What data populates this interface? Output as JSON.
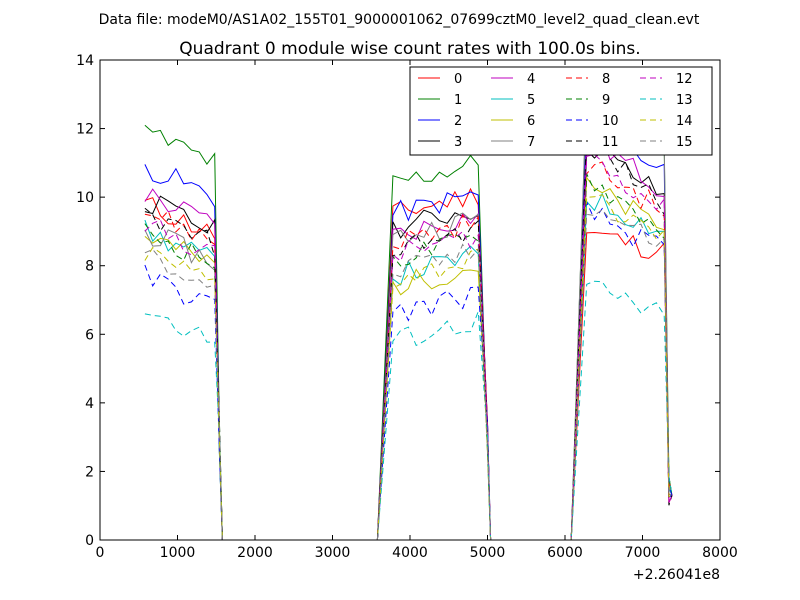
{
  "header": {
    "suptitle": "Data file: modeM0/AS1A02_155T01_9000001062_07699cztM0_level2_quad_clean.evt"
  },
  "chart_data": {
    "type": "line",
    "title": "Quadrant 0 module wise count rates with 100.0s bins.",
    "xlabel": "",
    "ylabel": "",
    "x_offset_label": "+2.26041e8",
    "xlim": [
      0,
      8000
    ],
    "ylim": [
      0,
      14
    ],
    "xticks": [
      0,
      1000,
      2000,
      3000,
      4000,
      5000,
      6000,
      7000,
      8000
    ],
    "yticks": [
      0,
      2,
      4,
      6,
      8,
      10,
      12,
      14
    ],
    "legend_location": "upper-right",
    "legend_columns": 4,
    "series": [
      {
        "name": "0",
        "color": "#ff0000",
        "dash": "solid",
        "levels": [
          9.8,
          9.5,
          9.0,
          8.4
        ]
      },
      {
        "name": "1",
        "color": "#008000",
        "dash": "solid",
        "levels": [
          11.9,
          10.4,
          13.0,
          11.5
        ]
      },
      {
        "name": "2",
        "color": "#0000ff",
        "dash": "solid",
        "levels": [
          10.9,
          9.5,
          12.2,
          10.8
        ]
      },
      {
        "name": "3",
        "color": "#000000",
        "dash": "solid",
        "levels": [
          9.9,
          9.1,
          11.6,
          10.0
        ]
      },
      {
        "name": "4",
        "color": "#bf00bf",
        "dash": "solid",
        "levels": [
          10.1,
          8.9,
          11.8,
          10.2
        ]
      },
      {
        "name": "5",
        "color": "#00bfbf",
        "dash": "solid",
        "levels": [
          9.0,
          7.7,
          10.0,
          9.0
        ]
      },
      {
        "name": "6",
        "color": "#bfbf00",
        "dash": "solid",
        "levels": [
          8.9,
          7.4,
          10.3,
          9.1
        ]
      },
      {
        "name": "7",
        "color": "#808080",
        "dash": "solid",
        "levels": [
          9.0,
          8.8,
          13.5,
          12.0
        ]
      },
      {
        "name": "8",
        "color": "#ff0000",
        "dash": "dashed",
        "levels": [
          9.6,
          8.7,
          11.0,
          9.6
        ]
      },
      {
        "name": "9",
        "color": "#008000",
        "dash": "dashed",
        "levels": [
          9.0,
          8.2,
          10.6,
          9.0
        ]
      },
      {
        "name": "10",
        "color": "#0000ff",
        "dash": "dashed",
        "levels": [
          7.7,
          6.6,
          9.6,
          8.4
        ]
      },
      {
        "name": "11",
        "color": "#000000",
        "dash": "dashed",
        "levels": [
          9.5,
          8.5,
          11.7,
          9.8
        ]
      },
      {
        "name": "12",
        "color": "#bf00bf",
        "dash": "dashed",
        "levels": [
          9.2,
          8.3,
          11.3,
          9.6
        ]
      },
      {
        "name": "13",
        "color": "#00bfbf",
        "dash": "dashed",
        "levels": [
          6.7,
          5.8,
          7.4,
          6.5
        ]
      },
      {
        "name": "14",
        "color": "#bfbf00",
        "dash": "dashed",
        "levels": [
          8.4,
          7.6,
          10.0,
          8.8
        ]
      },
      {
        "name": "15",
        "color": "#808080",
        "dash": "dashed",
        "levels": [
          8.3,
          7.8,
          9.8,
          8.6
        ]
      }
    ],
    "segments": [
      {
        "x_start": 580,
        "x_end": 1490,
        "x_drop": 1580
      },
      {
        "x_start": 3780,
        "x_end": 4900,
        "x_drop": 5040
      },
      {
        "x_start": 6280,
        "x_end": 7300,
        "x_drop": 7380
      }
    ],
    "gaps": [
      [
        1600,
        3600
      ],
      [
        5100,
        6200
      ]
    ]
  }
}
